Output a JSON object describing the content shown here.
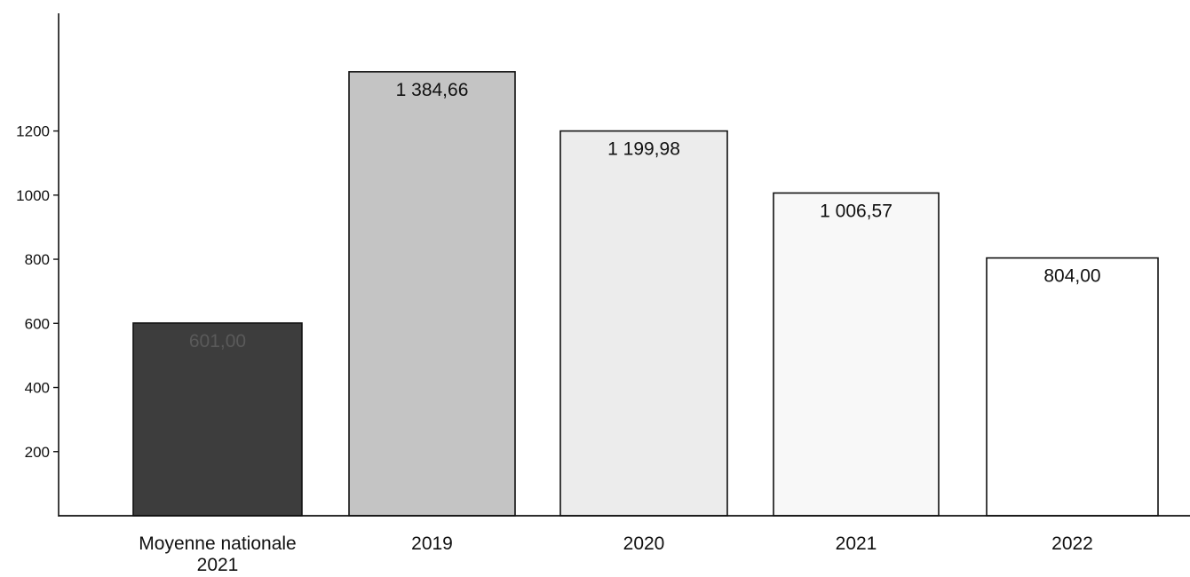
{
  "chart_data": {
    "type": "bar",
    "title": "",
    "xlabel": "",
    "ylabel": "",
    "ylim": [
      0,
      1200
    ],
    "yticks": [
      200,
      400,
      600,
      800,
      1000,
      1200
    ],
    "categories": [
      {
        "line1": "Moyenne nationale",
        "line2": "2021"
      },
      {
        "line1": "2019",
        "line2": ""
      },
      {
        "line1": "2020",
        "line2": ""
      },
      {
        "line1": "2021",
        "line2": ""
      },
      {
        "line1": "2022",
        "line2": ""
      }
    ],
    "values": [
      601.0,
      1384.66,
      1199.98,
      1006.57,
      804.0
    ],
    "value_labels": [
      "601,00",
      "1 384,66",
      "1 199,98",
      "1 006,57",
      "804,00"
    ],
    "bar_colors": [
      "#3d3d3d",
      "#c4c4c4",
      "#ececec",
      "#f8f8f8",
      "#ffffff"
    ],
    "label_colors": [
      "#5a5a5a",
      "#111111",
      "#111111",
      "#111111",
      "#111111"
    ],
    "grid": false,
    "legend": "none"
  }
}
